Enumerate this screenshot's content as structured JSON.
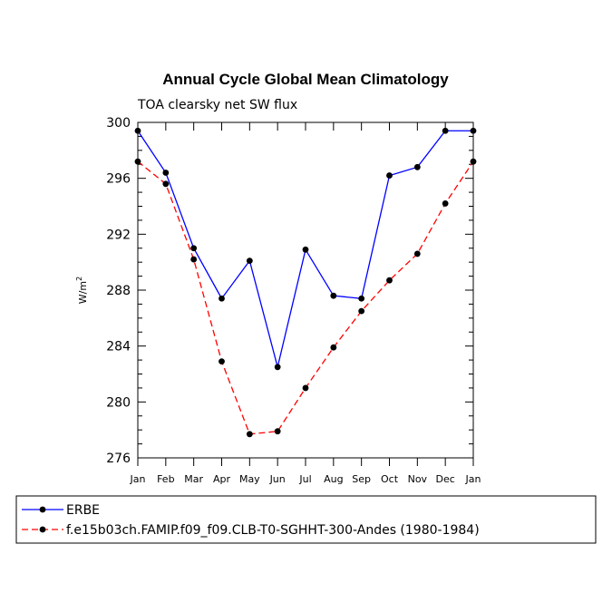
{
  "chart_data": {
    "type": "line",
    "title": "Annual Cycle Global Mean Climatology",
    "subtitle": "TOA clearsky net SW flux",
    "ylabel_base": "W/m",
    "ylabel_sup": "2",
    "xlabel": "",
    "categories": [
      "Jan",
      "Feb",
      "Mar",
      "Apr",
      "May",
      "Jun",
      "Jul",
      "Aug",
      "Sep",
      "Oct",
      "Nov",
      "Dec",
      "Jan"
    ],
    "ylim": [
      276,
      300
    ],
    "yticks": [
      276,
      280,
      284,
      288,
      292,
      296,
      300
    ],
    "grid": false,
    "legend_position": "bottom",
    "series": [
      {
        "name": "ERBE",
        "color": "#0000ff",
        "dashed": false,
        "values": [
          299.4,
          296.4,
          291.0,
          287.4,
          290.1,
          282.5,
          290.9,
          287.6,
          287.4,
          296.2,
          296.8,
          299.4,
          299.4
        ]
      },
      {
        "name": "f.e15b03ch.FAMIP.f09_f09.CLB-T0-SGHHT-300-Andes (1980-1984)",
        "color": "#ff0000",
        "dashed": true,
        "values": [
          297.2,
          295.6,
          290.2,
          282.9,
          277.7,
          277.9,
          281.0,
          283.9,
          286.5,
          288.7,
          290.6,
          294.2,
          297.2
        ]
      }
    ]
  }
}
